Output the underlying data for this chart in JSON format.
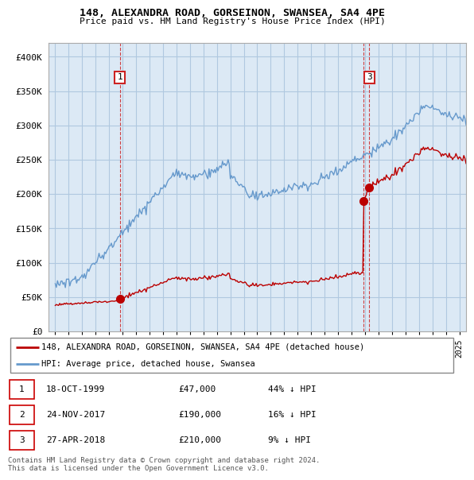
{
  "title": "148, ALEXANDRA ROAD, GORSEINON, SWANSEA, SA4 4PE",
  "subtitle": "Price paid vs. HM Land Registry's House Price Index (HPI)",
  "ylabel_ticks": [
    "£0",
    "£50K",
    "£100K",
    "£150K",
    "£200K",
    "£250K",
    "£300K",
    "£350K",
    "£400K"
  ],
  "ytick_values": [
    0,
    50000,
    100000,
    150000,
    200000,
    250000,
    300000,
    350000,
    400000
  ],
  "ylim": [
    0,
    420000
  ],
  "xlim_start": 1994.5,
  "xlim_end": 2025.5,
  "transaction_dates": [
    1999.79,
    2017.9,
    2018.32
  ],
  "transaction_prices": [
    47000,
    190000,
    210000
  ],
  "transaction_labels": [
    "1",
    "2",
    "3"
  ],
  "legend_red": "148, ALEXANDRA ROAD, GORSEINON, SWANSEA, SA4 4PE (detached house)",
  "legend_blue": "HPI: Average price, detached house, Swansea",
  "table_rows": [
    [
      "1",
      "18-OCT-1999",
      "£47,000",
      "44% ↓ HPI"
    ],
    [
      "2",
      "24-NOV-2017",
      "£190,000",
      "16% ↓ HPI"
    ],
    [
      "3",
      "27-APR-2018",
      "£210,000",
      "9% ↓ HPI"
    ]
  ],
  "footer": "Contains HM Land Registry data © Crown copyright and database right 2024.\nThis data is licensed under the Open Government Licence v3.0.",
  "bg_color": "#ffffff",
  "plot_bg_color": "#dce9f5",
  "grid_color": "#b0c8e0",
  "line_color_red": "#bb0000",
  "line_color_blue": "#6699cc",
  "vline_color": "#cc2222"
}
